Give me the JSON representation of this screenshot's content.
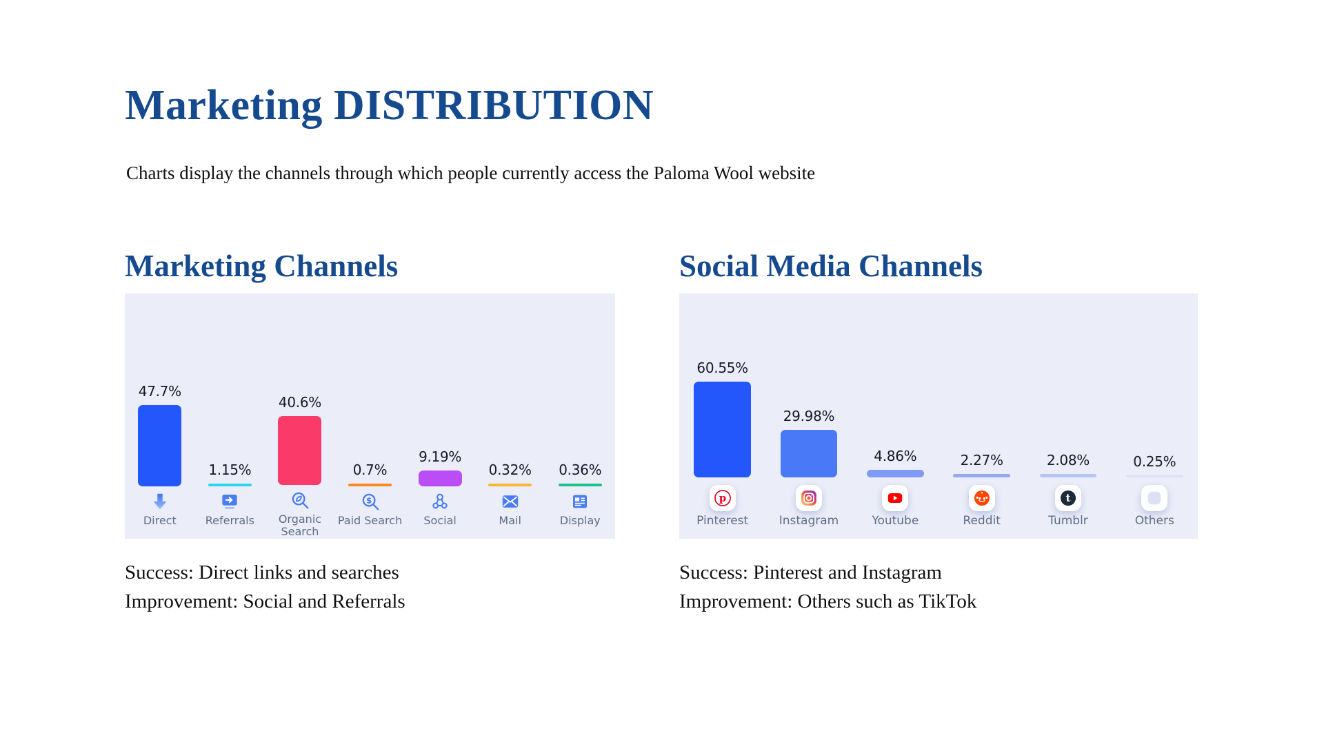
{
  "page": {
    "title": "Marketing DISTRIBUTION",
    "subtitle": "Charts display the channels through which people currently access the Paloma Wool website"
  },
  "colors": {
    "heading": "#154A8F",
    "text": "#101010",
    "panel": "#EBEEF8",
    "value": "#17172B",
    "cat": "#5F6C87"
  },
  "sections": [
    {
      "heading": "Marketing Channels",
      "notes": [
        "Success: Direct links and searches",
        "Improvement: Social and Referrals"
      ]
    },
    {
      "heading": "Social Media Channels",
      "notes": [
        "Success: Pinterest and Instagram",
        "Improvement: Others such as TikTok"
      ]
    }
  ],
  "chart_data": [
    {
      "type": "bar",
      "title": "Marketing Channels",
      "categories": [
        "Direct",
        "Referrals",
        "Organic Search",
        "Paid Search",
        "Social",
        "Mail",
        "Display"
      ],
      "values": [
        47.7,
        1.15,
        40.6,
        0.7,
        9.19,
        0.32,
        0.36
      ],
      "value_labels": [
        "47.7%",
        "1.15%",
        "40.6%",
        "0.7%",
        "9.19%",
        "0.32%",
        "0.36%"
      ],
      "bar_colors": [
        "#2457FB",
        "#2CD4EE",
        "#FA3A68",
        "#F9891E",
        "#BA4DF6",
        "#F7B731",
        "#17C388"
      ],
      "icons": [
        "direct-arrow",
        "referral-screen",
        "organic-search-magnifier",
        "paid-search-magnifier",
        "social-network",
        "mail-envelope",
        "display-board"
      ],
      "xlabel": "",
      "ylabel": "",
      "ylim": [
        0,
        50
      ],
      "grid": false,
      "legend": false,
      "value_unit": "%"
    },
    {
      "type": "bar",
      "title": "Social Media Channels",
      "categories": [
        "Pinterest",
        "Instagram",
        "Youtube",
        "Reddit",
        "Tumblr",
        "Others"
      ],
      "values": [
        60.55,
        29.98,
        4.86,
        2.27,
        2.08,
        0.25
      ],
      "value_labels": [
        "60.55%",
        "29.98%",
        "4.86%",
        "2.27%",
        "2.08%",
        "0.25%"
      ],
      "bar_colors": [
        "#2457FB",
        "#4A79F7",
        "#7D9AF5",
        "#93A9F0",
        "#B7C5F5",
        "#D9E0F8"
      ],
      "icons": [
        "pinterest",
        "instagram",
        "youtube",
        "reddit",
        "tumblr",
        "others"
      ],
      "xlabel": "",
      "ylabel": "",
      "ylim": [
        0,
        65
      ],
      "grid": false,
      "legend": false,
      "value_unit": "%"
    }
  ]
}
